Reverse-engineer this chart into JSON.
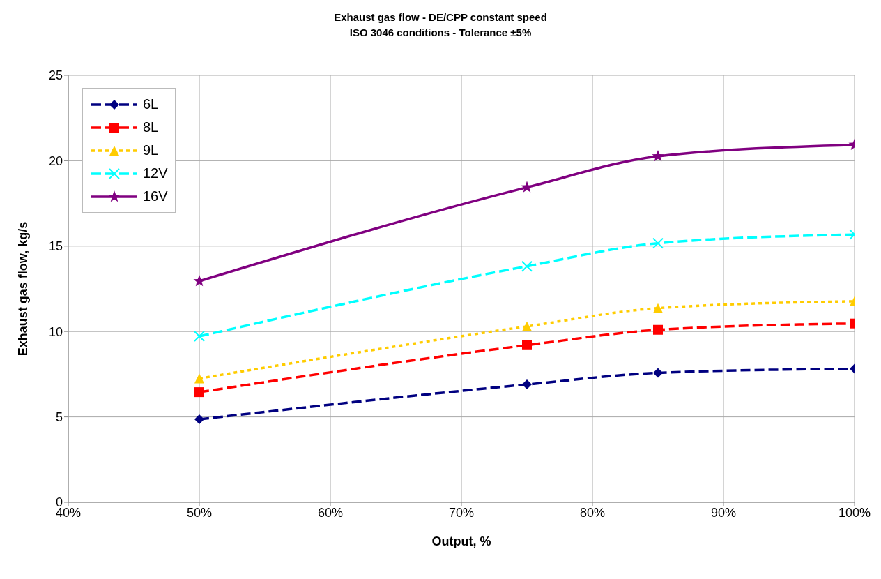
{
  "chart_data": {
    "type": "line",
    "title": "Exhaust gas flow - DE/CPP constant speed",
    "subtitle": "ISO 3046 conditions - Tolerance ±5%",
    "xlabel": "Output, %",
    "ylabel": "Exhaust gas flow, kg/s",
    "x": [
      50,
      75,
      85,
      100
    ],
    "series": [
      {
        "name": "6L",
        "color": "#000080",
        "marker": "diamond",
        "line_style": "dashed",
        "values": [
          4.86,
          6.9,
          7.58,
          7.82
        ]
      },
      {
        "name": "8L",
        "color": "#ff0000",
        "marker": "square",
        "line_style": "dashed",
        "values": [
          6.45,
          9.2,
          10.1,
          10.47
        ]
      },
      {
        "name": "9L",
        "color": "#ffcc00",
        "marker": "triangle",
        "line_style": "dotted",
        "values": [
          7.25,
          10.3,
          11.37,
          11.77
        ]
      },
      {
        "name": "12V",
        "color": "#00ffff",
        "marker": "cross",
        "line_style": "dashed",
        "values": [
          9.72,
          13.82,
          15.17,
          15.68
        ]
      },
      {
        "name": "16V",
        "color": "#800080",
        "marker": "star",
        "line_style": "solid",
        "values": [
          12.95,
          18.44,
          20.26,
          20.93
        ]
      }
    ],
    "xlim": [
      40,
      100
    ],
    "xticks": [
      {
        "value": 40,
        "label": "40%"
      },
      {
        "value": 50,
        "label": "50%"
      },
      {
        "value": 60,
        "label": "60%"
      },
      {
        "value": 70,
        "label": "70%"
      },
      {
        "value": 80,
        "label": "80%"
      },
      {
        "value": 90,
        "label": "90%"
      },
      {
        "value": 100,
        "label": "100%"
      }
    ],
    "ylim": [
      0,
      25
    ],
    "yticks": [
      0,
      5,
      10,
      15,
      20,
      25
    ],
    "grid": true,
    "legend": "top left"
  }
}
